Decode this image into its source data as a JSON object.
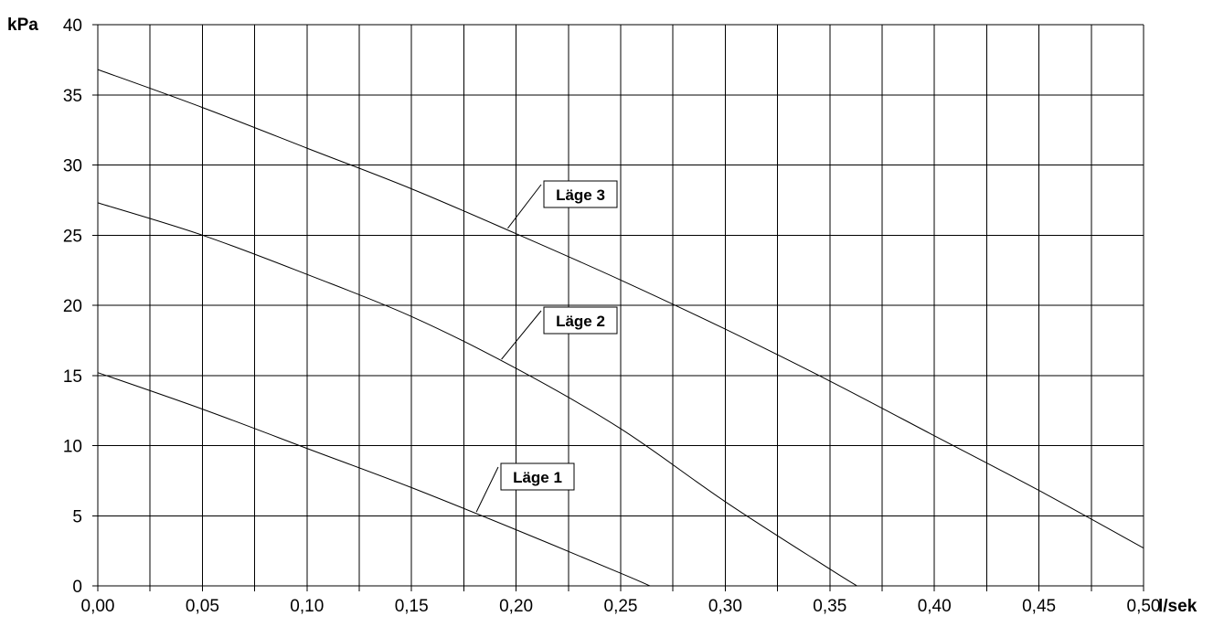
{
  "chart_data": {
    "type": "line",
    "xlabel": "l/sek",
    "ylabel": "kPa",
    "xlim": [
      0,
      0.5
    ],
    "ylim": [
      0,
      40
    ],
    "x_ticks": [
      "0,00",
      "0,05",
      "0,10",
      "0,15",
      "0,20",
      "0,25",
      "0,30",
      "0,35",
      "0,40",
      "0,45",
      "0,50"
    ],
    "y_ticks": [
      "0",
      "5",
      "10",
      "15",
      "20",
      "25",
      "30",
      "35",
      "40"
    ],
    "grid": true,
    "series": [
      {
        "name": "Läge 1",
        "x": [
          0,
          0.05,
          0.1,
          0.15,
          0.2,
          0.25,
          0.264
        ],
        "y": [
          15.2,
          12.6,
          9.8,
          7.0,
          4.0,
          0.9,
          0
        ]
      },
      {
        "name": "Läge 2",
        "x": [
          0,
          0.05,
          0.1,
          0.15,
          0.2,
          0.25,
          0.3,
          0.35,
          0.363
        ],
        "y": [
          27.3,
          25.0,
          22.2,
          19.2,
          15.5,
          11.2,
          6.0,
          1.2,
          0
        ]
      },
      {
        "name": "Läge 3",
        "x": [
          0,
          0.05,
          0.1,
          0.15,
          0.2,
          0.25,
          0.3,
          0.35,
          0.4,
          0.45,
          0.5
        ],
        "y": [
          36.8,
          34.1,
          31.2,
          28.3,
          25.1,
          21.8,
          18.3,
          14.6,
          10.7,
          6.8,
          2.7
        ]
      }
    ]
  }
}
